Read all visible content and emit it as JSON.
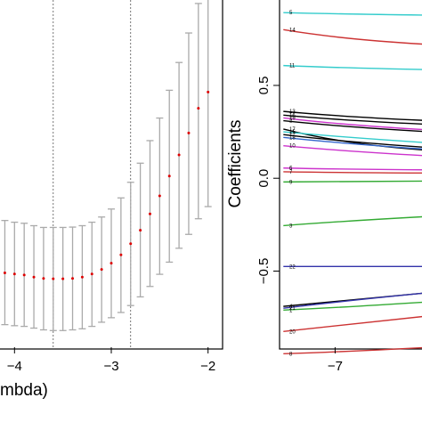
{
  "chart_data": [
    {
      "type": "scatter",
      "xlabel": "mbda)",
      "x_ticks": [
        -4,
        -3,
        -2
      ],
      "xlim": [
        -4.15,
        -1.85
      ],
      "ylim": [
        0,
        1
      ],
      "error_bars": true,
      "vertical_lines": [
        -3.6,
        -2.8
      ],
      "colors": {
        "point": "#dd0000",
        "bar": "#aaaaaa",
        "line": "#555555"
      },
      "points": [
        {
          "x": -4.2,
          "y": 0.219,
          "lo": 0.07,
          "hi": 0.37
        },
        {
          "x": -4.1,
          "y": 0.214,
          "lo": 0.065,
          "hi": 0.365
        },
        {
          "x": -4.0,
          "y": 0.211,
          "lo": 0.062,
          "hi": 0.36
        },
        {
          "x": -3.9,
          "y": 0.208,
          "lo": 0.06,
          "hi": 0.357
        },
        {
          "x": -3.8,
          "y": 0.202,
          "lo": 0.055,
          "hi": 0.35
        },
        {
          "x": -3.7,
          "y": 0.198,
          "lo": 0.05,
          "hi": 0.345
        },
        {
          "x": -3.6,
          "y": 0.197,
          "lo": 0.048,
          "hi": 0.345
        },
        {
          "x": -3.5,
          "y": 0.197,
          "lo": 0.048,
          "hi": 0.345
        },
        {
          "x": -3.4,
          "y": 0.198,
          "lo": 0.05,
          "hi": 0.346
        },
        {
          "x": -3.3,
          "y": 0.202,
          "lo": 0.053,
          "hi": 0.35
        },
        {
          "x": -3.2,
          "y": 0.211,
          "lo": 0.06,
          "hi": 0.36
        },
        {
          "x": -3.1,
          "y": 0.224,
          "lo": 0.072,
          "hi": 0.375
        },
        {
          "x": -3.0,
          "y": 0.242,
          "lo": 0.085,
          "hi": 0.398
        },
        {
          "x": -2.9,
          "y": 0.266,
          "lo": 0.1,
          "hi": 0.43
        },
        {
          "x": -2.8,
          "y": 0.298,
          "lo": 0.12,
          "hi": 0.475
        },
        {
          "x": -2.7,
          "y": 0.337,
          "lo": 0.145,
          "hi": 0.53
        },
        {
          "x": -2.6,
          "y": 0.384,
          "lo": 0.175,
          "hi": 0.595
        },
        {
          "x": -2.5,
          "y": 0.436,
          "lo": 0.21,
          "hi": 0.66
        },
        {
          "x": -2.4,
          "y": 0.493,
          "lo": 0.245,
          "hi": 0.74
        },
        {
          "x": -2.3,
          "y": 0.554,
          "lo": 0.285,
          "hi": 0.82
        },
        {
          "x": -2.2,
          "y": 0.617,
          "lo": 0.325,
          "hi": 0.905
        },
        {
          "x": -2.1,
          "y": 0.688,
          "lo": 0.37,
          "hi": 0.99
        },
        {
          "x": -2.0,
          "y": 0.735,
          "lo": 0.405,
          "hi": 1.065
        }
      ]
    },
    {
      "type": "line",
      "ylabel": "Coefficients",
      "x_ticks": [
        -7
      ],
      "y_ticks": [
        "0.5",
        "0.0",
        "-0.5"
      ],
      "y_tick_values": [
        0.5,
        0.0,
        -0.5
      ],
      "xlim": [
        -7.58,
        -6.0
      ],
      "ylim": [
        -0.91,
        0.96
      ],
      "series": [
        {
          "name": "5",
          "color": "#33cccc",
          "values": [
            0.892,
            0.884,
            0.878
          ]
        },
        {
          "name": "14",
          "color": "#cc3333",
          "values": [
            0.8,
            0.745,
            0.72
          ]
        },
        {
          "name": "11",
          "color": "#33cccc",
          "values": [
            0.607,
            0.593,
            0.585
          ]
        },
        {
          "name": "13",
          "color": "#000000",
          "values": [
            0.36,
            0.33,
            0.31
          ]
        },
        {
          "name": "16",
          "color": "#000000",
          "values": [
            0.34,
            0.31,
            0.29
          ]
        },
        {
          "name": "19",
          "color": "#cc33cc",
          "values": [
            0.325,
            0.285,
            0.26
          ]
        },
        {
          "name": "2",
          "color": "#000000",
          "values": [
            0.31,
            0.275,
            0.25
          ]
        },
        {
          "name": "17",
          "color": "#000000",
          "values": [
            0.265,
            0.18,
            0.15
          ]
        },
        {
          "name": "15",
          "color": "#33cccc",
          "values": [
            0.25,
            0.22,
            0.19
          ]
        },
        {
          "name": "12",
          "color": "#000000",
          "values": [
            0.235,
            0.195,
            0.165
          ]
        },
        {
          "name": "18",
          "color": "#3366cc",
          "values": [
            0.22,
            0.185,
            0.155
          ]
        },
        {
          "name": "10",
          "color": "#cc33cc",
          "values": [
            0.175,
            0.145,
            0.12
          ]
        },
        {
          "name": "6",
          "color": "#cc33cc",
          "values": [
            0.055,
            0.048,
            0.045
          ]
        },
        {
          "name": "7",
          "color": "#cc3333",
          "values": [
            0.035,
            0.03,
            0.028
          ]
        },
        {
          "name": "9",
          "color": "#33aa33",
          "values": [
            -0.02,
            -0.018,
            -0.015
          ]
        },
        {
          "name": "3",
          "color": "#33aa33",
          "values": [
            -0.255,
            -0.23,
            -0.205
          ]
        },
        {
          "name": "22",
          "color": "#3333aa",
          "values": [
            -0.475,
            -0.475,
            -0.475
          ]
        },
        {
          "name": "4",
          "color": "#000000",
          "values": [
            -0.69,
            -0.66,
            -0.615
          ]
        },
        {
          "name": "21",
          "color": "#3333aa",
          "values": [
            -0.7,
            -0.66,
            -0.615
          ]
        },
        {
          "name": "1",
          "color": "#33aa33",
          "values": [
            -0.71,
            -0.695,
            -0.665
          ]
        },
        {
          "name": "20",
          "color": "#cc3333",
          "values": [
            -0.825,
            -0.79,
            -0.74
          ]
        },
        {
          "name": "8",
          "color": "#cc3333",
          "values": [
            -0.945,
            -0.935,
            -0.91
          ]
        }
      ]
    }
  ]
}
